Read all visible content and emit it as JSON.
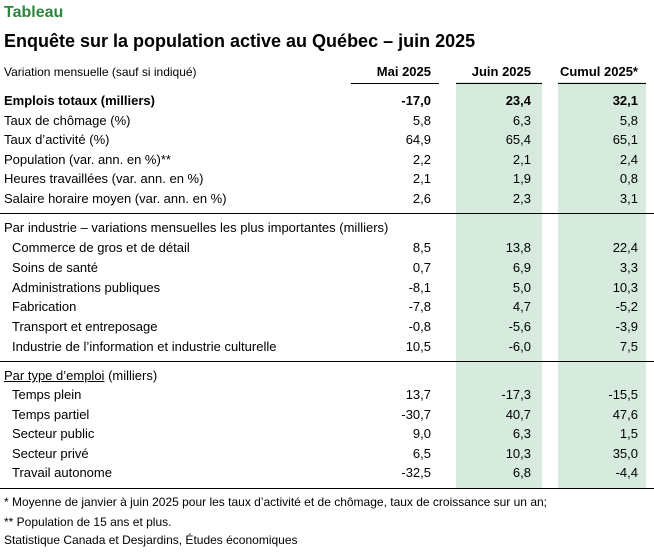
{
  "kicker": "Tableau",
  "title": "Enquête sur la population active au Québec – juin 2025",
  "colors": {
    "kicker": "#2e8540",
    "highlight": "#d6ebdd"
  },
  "header": {
    "label": "Variation mensuelle (sauf si indiqué)",
    "columns": [
      "Mai 2025",
      "Juin 2025",
      "Cumul 2025*"
    ]
  },
  "section1": {
    "rows": [
      {
        "label": "Emplois totaux (milliers)",
        "values": [
          "-17,0",
          "23,4",
          "32,1"
        ]
      },
      {
        "label": "Taux de chômage (%)",
        "values": [
          "5,8",
          "6,3",
          "5,8"
        ]
      },
      {
        "label": "Taux d’activité (%)",
        "values": [
          "64,9",
          "65,4",
          "65,1"
        ]
      },
      {
        "label": "Population (var. ann. en %)**",
        "values": [
          "2,2",
          "2,1",
          "2,4"
        ]
      },
      {
        "label": "Heures travaillées (var. ann. en %)",
        "values": [
          "2,1",
          "1,9",
          "0,8"
        ]
      },
      {
        "label": "Salaire horaire moyen (var. ann. en %)",
        "values": [
          "2,6",
          "2,3",
          "3,1"
        ]
      }
    ]
  },
  "section2": {
    "heading": "Par industrie – variations mensuelles les plus importantes (milliers)",
    "rows": [
      {
        "label": "Commerce de gros et de détail",
        "values": [
          "8,5",
          "13,8",
          "22,4"
        ]
      },
      {
        "label": "Soins de santé",
        "values": [
          "0,7",
          "6,9",
          "3,3"
        ]
      },
      {
        "label": "Administrations publiques",
        "values": [
          "-8,1",
          "5,0",
          "10,3"
        ]
      },
      {
        "label": "Fabrication",
        "values": [
          "-7,8",
          "4,7",
          "-5,2"
        ]
      },
      {
        "label": "Transport et entreposage",
        "values": [
          "-0,8",
          "-5,6",
          "-3,9"
        ]
      },
      {
        "label": "Industrie de l’information et industrie culturelle",
        "values": [
          "10,5",
          "-6,0",
          "7,5"
        ]
      }
    ]
  },
  "section3": {
    "heading_underlined": "Par type d’emploi",
    "heading_rest": " (milliers)",
    "rows": [
      {
        "label": "Temps plein",
        "values": [
          "13,7",
          "-17,3",
          "-15,5"
        ]
      },
      {
        "label": "Temps partiel",
        "values": [
          "-30,7",
          "40,7",
          "47,6"
        ]
      },
      {
        "label": "Secteur public",
        "values": [
          "9,0",
          "6,3",
          "1,5"
        ]
      },
      {
        "label": "Secteur privé",
        "values": [
          "6,5",
          "10,3",
          "35,0"
        ]
      },
      {
        "label": "Travail autonome",
        "values": [
          "-32,5",
          "6,8",
          "-4,4"
        ]
      }
    ]
  },
  "notes": [
    "* Moyenne de janvier à juin 2025 pour les taux d’activité et de chômage, taux de croissance sur un an;",
    "** Population de 15 ans et plus.",
    "Statistique Canada et Desjardins, Études économiques"
  ]
}
